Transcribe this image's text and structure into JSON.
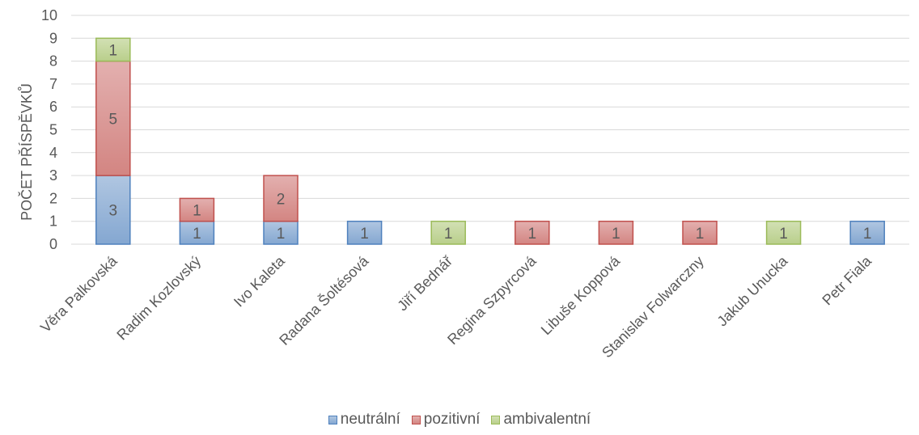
{
  "chart_data": {
    "type": "bar",
    "stacked": true,
    "title": "",
    "xlabel": "",
    "ylabel": "POČET PŘÍSPĚVKŮ",
    "ylim": [
      0,
      10
    ],
    "yticks": [
      0,
      1,
      2,
      3,
      4,
      5,
      6,
      7,
      8,
      9,
      10
    ],
    "grid": true,
    "legend_position": "bottom",
    "categories": [
      "Věra Palkovská",
      "Radim Kozlovský",
      "Ivo Kaleta",
      "Radana Šoltésová",
      "Jiří Bednář",
      "Regina Szpyrcová",
      "Libuše Koppová",
      "Stanislav Folwarczny",
      "Jakub Unucka",
      "Petr Fiala"
    ],
    "series": [
      {
        "name": "neutrální",
        "color": "#4f81bd",
        "values": [
          3,
          1,
          1,
          1,
          0,
          0,
          0,
          0,
          0,
          1
        ]
      },
      {
        "name": "pozitivní",
        "color": "#c0504d",
        "values": [
          5,
          1,
          2,
          0,
          0,
          1,
          1,
          1,
          0,
          0
        ]
      },
      {
        "name": "ambivalentní",
        "color": "#9bbb59",
        "values": [
          1,
          0,
          0,
          0,
          1,
          0,
          0,
          0,
          1,
          0
        ]
      }
    ]
  }
}
